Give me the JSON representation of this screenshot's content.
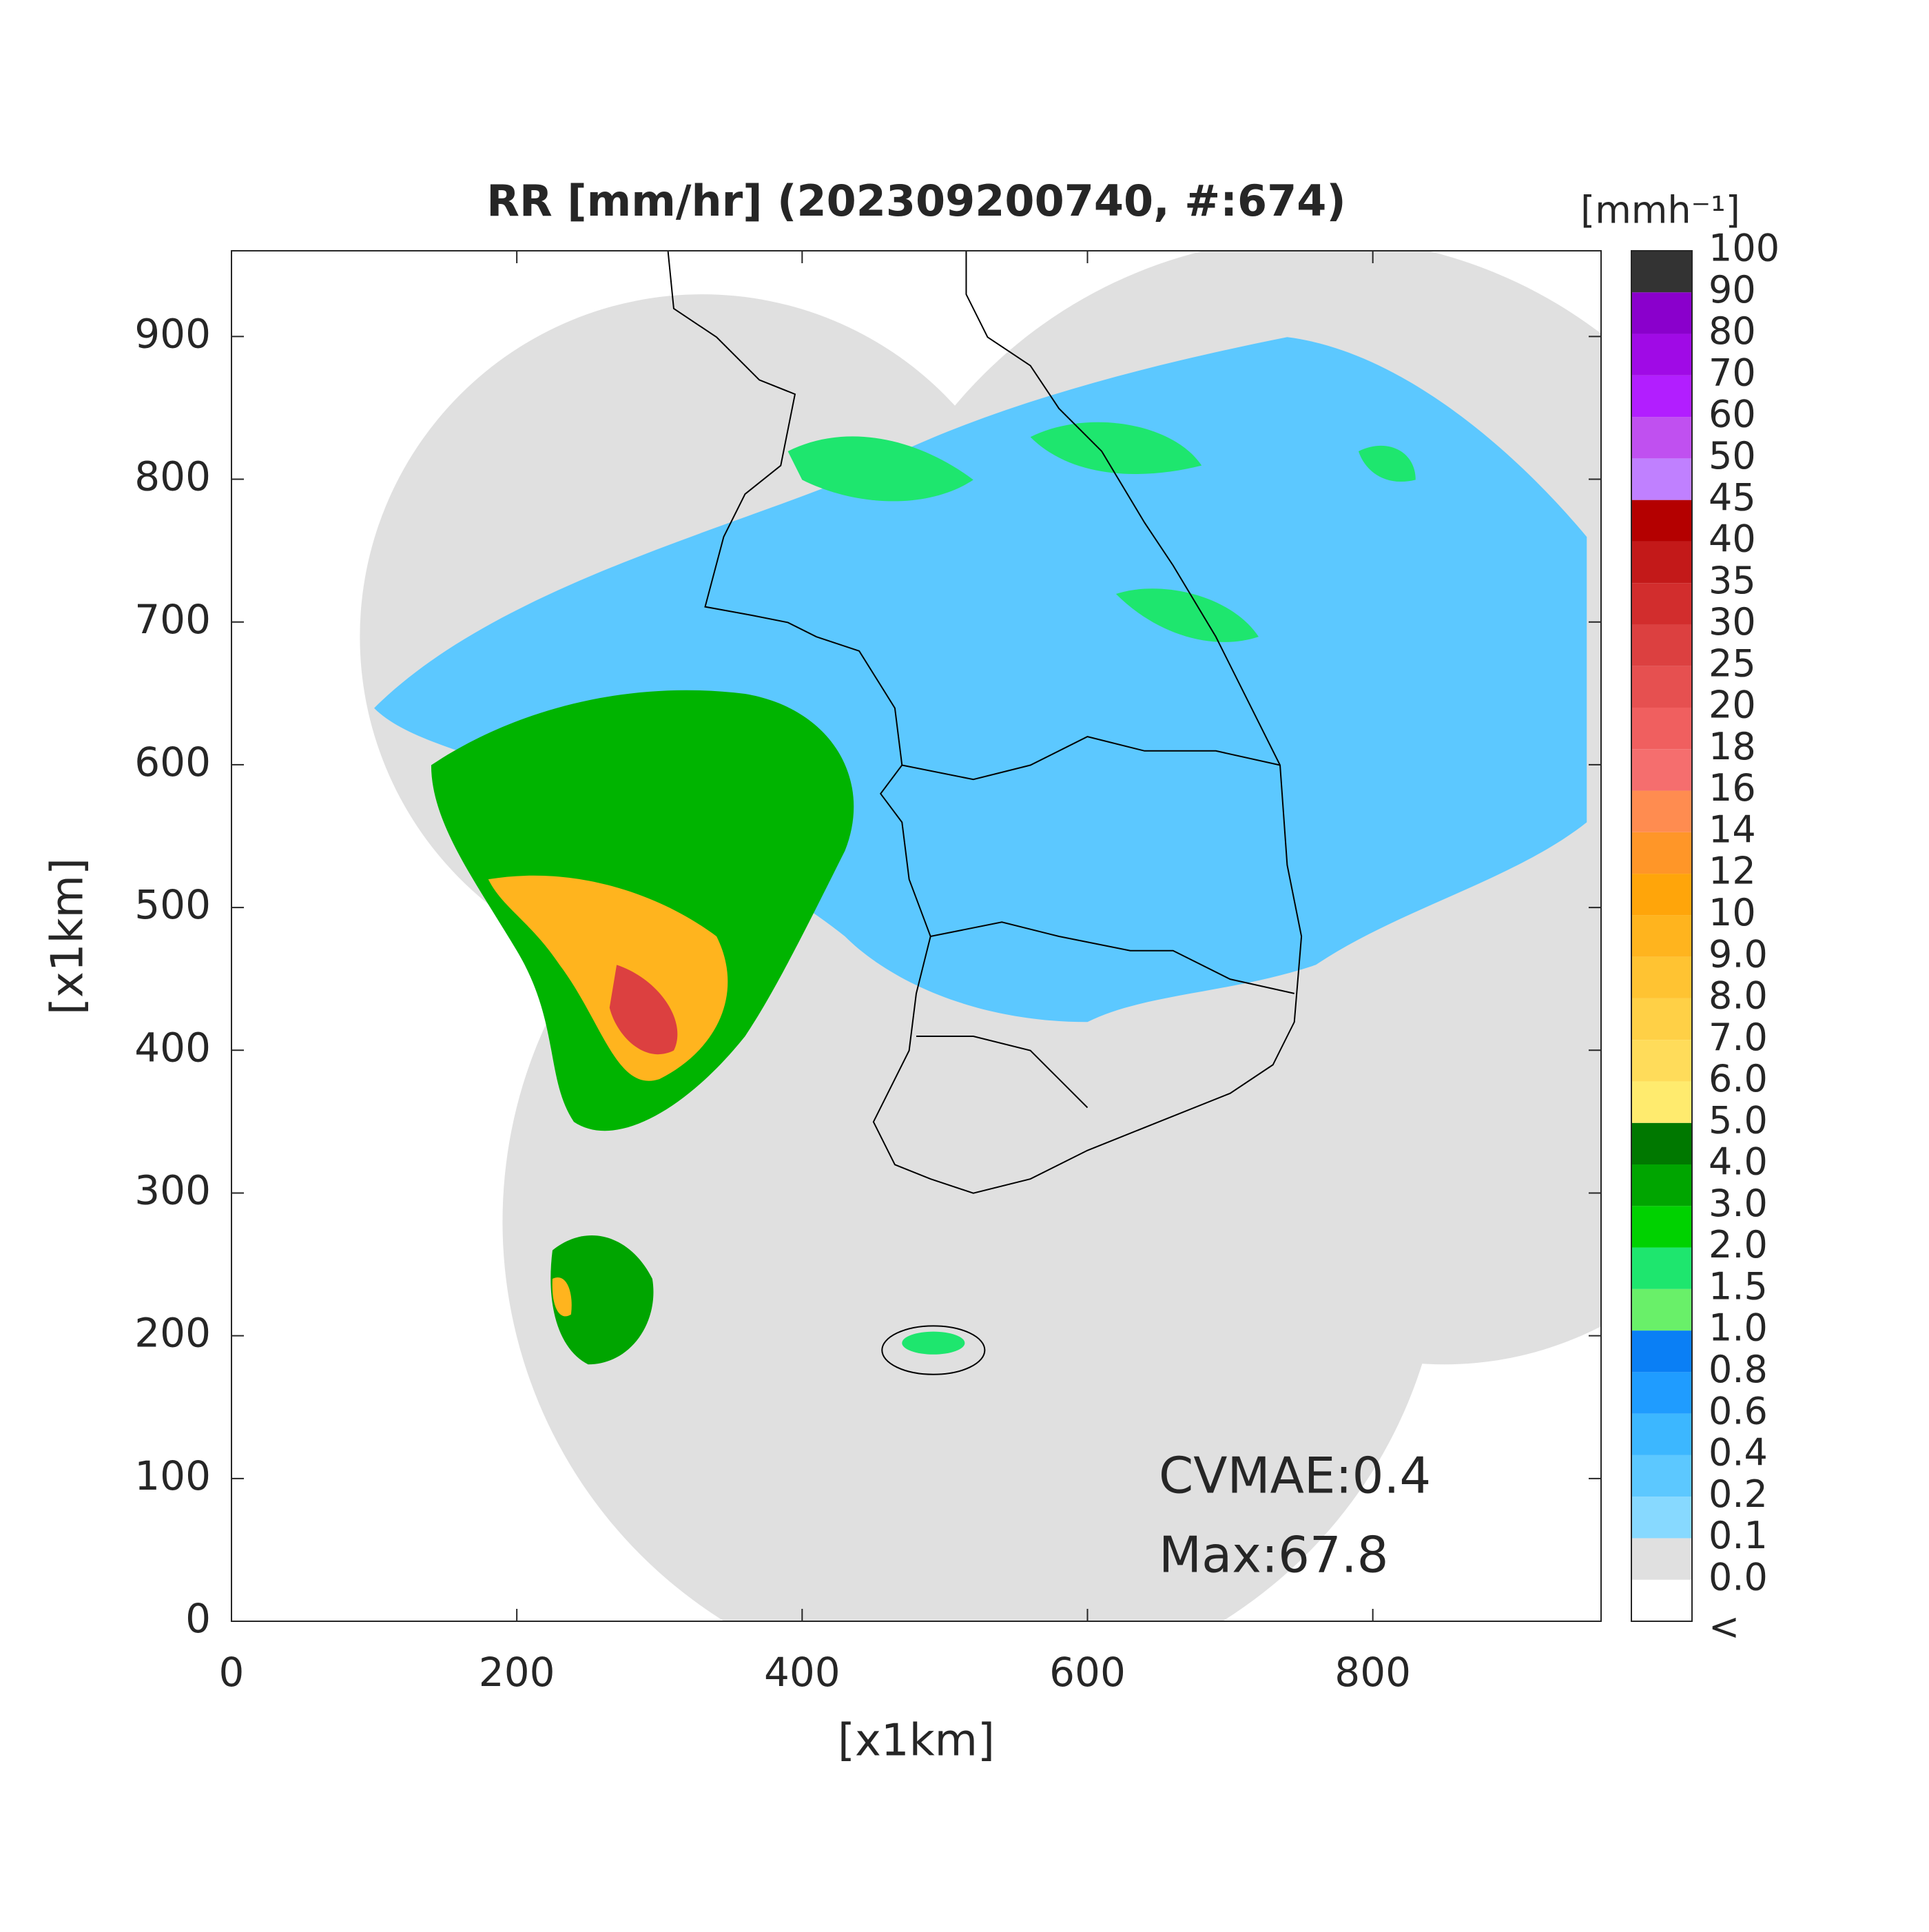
{
  "chart_data": {
    "type": "radar-map",
    "title": "RR [mm/hr] (202309200740, #:674)",
    "xlabel": "[x1km]",
    "ylabel": "[x1km]",
    "xlim": [
      0,
      960
    ],
    "ylim": [
      0,
      960
    ],
    "xticks": [
      0,
      200,
      400,
      600,
      800
    ],
    "yticks": [
      0,
      100,
      200,
      300,
      400,
      500,
      600,
      700,
      800,
      900
    ],
    "annotations": [
      "CVMAE:0.4",
      "Max:67.8"
    ],
    "colorbar": {
      "title": "[mmh⁻¹]",
      "labels": [
        "<",
        "0.0",
        "0.1",
        "0.2",
        "0.4",
        "0.6",
        "0.8",
        "1.0",
        "1.5",
        "2.0",
        "3.0",
        "4.0",
        "5.0",
        "6.0",
        "7.0",
        "8.0",
        "9.0",
        "10",
        "12",
        "14",
        "16",
        "18",
        "20",
        "25",
        "30",
        "35",
        "40",
        "45",
        "50",
        "60",
        "70",
        "80",
        "90",
        "100"
      ],
      "colors": [
        "#ffffff",
        "#e0e0e0",
        "#87d9ff",
        "#5cc8ff",
        "#3cb7ff",
        "#1f9cff",
        "#0a7ff5",
        "#69f069",
        "#1ee66e",
        "#00d200",
        "#00a500",
        "#007800",
        "#ffeb6e",
        "#ffdc5a",
        "#ffd046",
        "#ffc332",
        "#ffb41e",
        "#ffa50a",
        "#ff9628",
        "#ff8c50",
        "#f56e6e",
        "#f05f5f",
        "#e65050",
        "#dc4040",
        "#d22d2d",
        "#c31919",
        "#b40000",
        "#c080ff",
        "#c050f0",
        "#b21eff",
        "#a00ae6",
        "#8a00cc",
        "#333333"
      ]
    }
  }
}
